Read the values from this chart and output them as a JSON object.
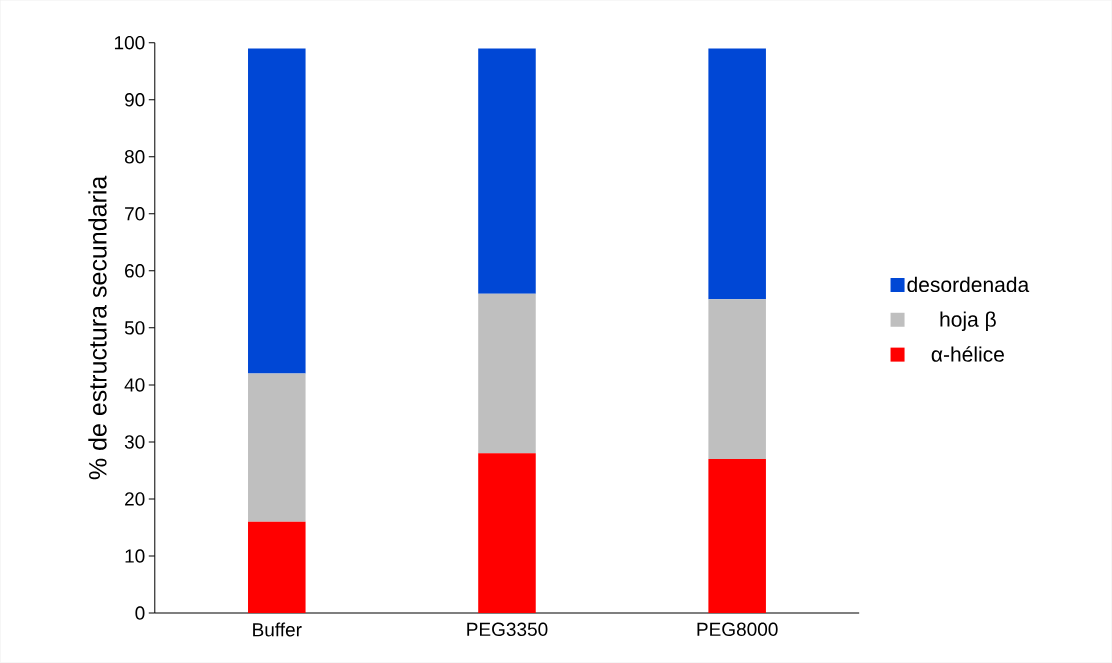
{
  "chart_data": {
    "type": "bar",
    "stacked": true,
    "ylabel": "% de estructura secundaria",
    "categories": [
      "Buffer",
      "PEG3350",
      "PEG8000"
    ],
    "series": [
      {
        "name": "α-hélice",
        "color": "#ff0000",
        "values": [
          16,
          28,
          27
        ]
      },
      {
        "name": "hoja β",
        "color": "#bfbfbf",
        "values": [
          26,
          28,
          28
        ]
      },
      {
        "name": "desordenada",
        "color": "#0047d5",
        "values": [
          57,
          43,
          44
        ]
      }
    ],
    "ylim": [
      0,
      100
    ],
    "yticks": [
      0,
      10,
      20,
      30,
      40,
      50,
      60,
      70,
      80,
      90,
      100
    ],
    "grid": false,
    "legend": "right"
  }
}
